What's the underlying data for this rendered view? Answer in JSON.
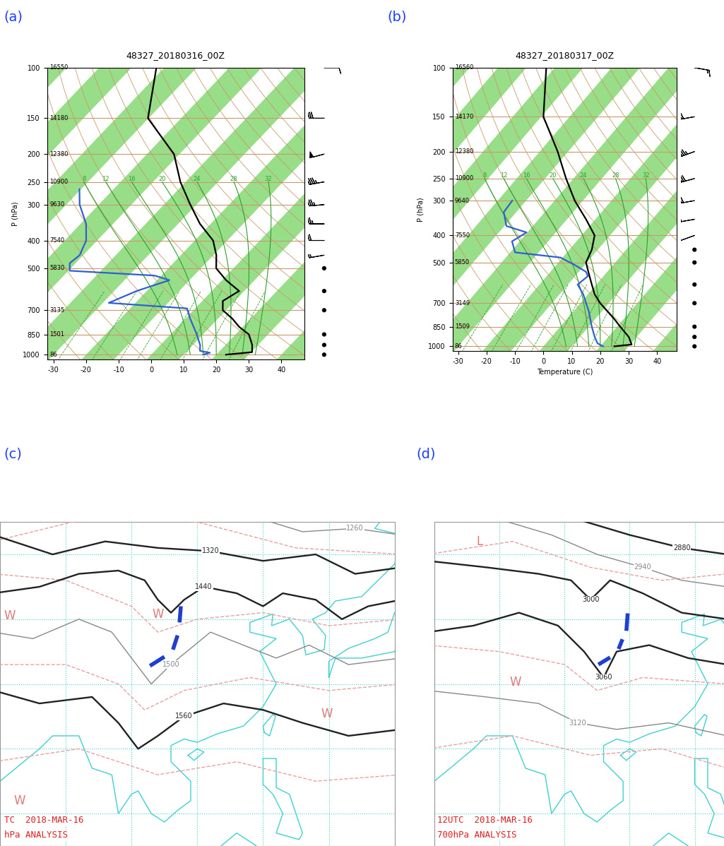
{
  "chart_data": [
    {
      "type": "skewt",
      "label": "(a)",
      "title": "48327_20180316_00Z",
      "ylabel": "P (hPa)",
      "log": "y",
      "grid": true,
      "xlim": [
        -32,
        47
      ],
      "xticks": [
        -30,
        -20,
        -10,
        0,
        10,
        20,
        30,
        40
      ],
      "ylim": [
        1040,
        100
      ],
      "yticks": [
        100,
        150,
        200,
        250,
        300,
        400,
        500,
        700,
        850,
        1000
      ],
      "heights": [
        16550,
        14180,
        12380,
        10900,
        9630,
        7540,
        5830,
        3135,
        1501,
        86
      ],
      "temperature": {
        "color": "#000000",
        "p": [
          1000,
          980,
          925,
          850,
          800,
          750,
          700,
          650,
          600,
          550,
          500,
          450,
          400,
          350,
          300,
          250,
          200,
          150,
          100
        ],
        "values": [
          23.0,
          30.3,
          28.2,
          24.1,
          18.9,
          14.5,
          9.0,
          6.3,
          8.4,
          1.2,
          -5.3,
          -9.1,
          -14.4,
          -23.3,
          -31.9,
          -41.6,
          -51.7,
          -70.2,
          -82.4
        ]
      },
      "dewpoint": {
        "color": "#3060d0",
        "p": [
          1000,
          985,
          970,
          925,
          850,
          750,
          690,
          660,
          600,
          550,
          530,
          510,
          480,
          450,
          400,
          350,
          300,
          265
        ],
        "values": [
          16.0,
          17.5,
          13.9,
          12.2,
          8.1,
          1.5,
          -2.5,
          -28.2,
          -23.1,
          -16.2,
          -22.2,
          -49.6,
          -51.8,
          -51.1,
          -53.4,
          -58.3,
          -65.9,
          -70.5
        ]
      },
      "moist_adiabat_labels": [
        8,
        12,
        16,
        20,
        24,
        28,
        32
      ],
      "wind": {
        "p": [
          1000,
          925,
          850,
          700,
          600,
          500,
          450,
          400,
          350,
          300,
          250,
          200,
          150,
          100
        ],
        "speed": [
          0,
          0,
          0,
          0,
          0,
          0,
          15,
          20,
          25,
          35,
          45,
          50,
          30,
          10
        ],
        "direction": [
          0,
          0,
          0,
          0,
          0,
          0,
          260,
          270,
          270,
          265,
          260,
          255,
          270,
          90
        ]
      }
    },
    {
      "type": "skewt",
      "label": "(b)",
      "title": "48327_20180317_00Z",
      "ylabel": "P (hPa)",
      "xlabel": "Temperature (C)",
      "log": "y",
      "grid": true,
      "xlim": [
        -32,
        47
      ],
      "xticks": [
        -30,
        -20,
        -10,
        0,
        10,
        20,
        30,
        40
      ],
      "ylim": [
        1040,
        100
      ],
      "yticks": [
        100,
        150,
        200,
        250,
        300,
        400,
        500,
        700,
        850,
        1000
      ],
      "heights": [
        16560,
        14170,
        12380,
        10900,
        9640,
        7550,
        5850,
        3149,
        1509,
        86
      ],
      "temperature": {
        "color": "#000000",
        "p": [
          1000,
          985,
          925,
          850,
          800,
          700,
          650,
          600,
          550,
          500,
          450,
          400,
          350,
          300,
          250,
          200,
          150,
          100
        ],
        "values": [
          25.0,
          30.5,
          27.2,
          21.1,
          16.9,
          7.0,
          2.3,
          -1.6,
          -5.8,
          -10.3,
          -12.1,
          -15.4,
          -23.3,
          -32.9,
          -42.6,
          -53.7,
          -69.2,
          -83.0
        ]
      },
      "dewpoint": {
        "color": "#3060d0",
        "p": [
          1000,
          975,
          925,
          850,
          750,
          700,
          650,
          600,
          560,
          540,
          510,
          480,
          460,
          420,
          390,
          370,
          330,
          300
        ],
        "values": [
          21.0,
          18.1,
          15.2,
          11.1,
          5.5,
          2.0,
          -1.7,
          -6.6,
          -5.5,
          -7.5,
          -13.6,
          -20.8,
          -38.3,
          -42.7,
          -40.3,
          -49.3,
          -54.4,
          -54.9
        ]
      },
      "moist_adiabat_labels": [
        8,
        12,
        16,
        20,
        24,
        28,
        32
      ],
      "wind": {
        "p": [
          1000,
          925,
          850,
          700,
          600,
          500,
          450,
          400,
          350,
          300,
          250,
          200,
          150,
          100
        ],
        "speed": [
          0,
          0,
          0,
          0,
          0,
          0,
          0,
          10,
          20,
          30,
          40,
          45,
          30,
          15
        ],
        "direction": [
          0,
          0,
          0,
          0,
          0,
          0,
          0,
          250,
          260,
          260,
          255,
          250,
          260,
          100
        ]
      }
    },
    {
      "type": "map",
      "label": "(c)",
      "text": [
        "TC  2018-MAR-16",
        "hPa ANALYSIS"
      ],
      "text_color": "#e02020",
      "tick_labels": false,
      "xlim": [
        80,
        140
      ],
      "ylim": [
        5,
        55
      ],
      "contours": [
        {
          "level": 1260,
          "color": "#888888",
          "points": [
            [
              118,
              56
            ],
            [
              126,
              53.5
            ],
            [
              134,
              54
            ],
            [
              141,
              53
            ]
          ]
        },
        {
          "level": 1320,
          "color": "#222222",
          "points": [
            [
              79,
              53
            ],
            [
              88,
              50
            ],
            [
              96,
              52
            ],
            [
              104,
              51
            ],
            [
              112,
              50.5
            ],
            [
              120,
              49
            ],
            [
              128,
              50
            ],
            [
              134,
              47
            ],
            [
              141,
              48
            ]
          ]
        },
        {
          "level": 1440,
          "color": "#222222",
          "points": [
            [
              79,
              44
            ],
            [
              86,
              45
            ],
            [
              92,
              47
            ],
            [
              98,
              47.5
            ],
            [
              102,
              46
            ],
            [
              104,
              43
            ],
            [
              106,
              41
            ],
            [
              108,
              43
            ],
            [
              111,
              45
            ],
            [
              116,
              44
            ],
            [
              120,
              42
            ],
            [
              123,
              44
            ],
            [
              128,
              43
            ],
            [
              132,
              40
            ],
            [
              136,
              42
            ],
            [
              141,
              43
            ]
          ]
        },
        {
          "level": 1500,
          "color": "#888888",
          "points": [
            [
              79,
              38
            ],
            [
              85,
              37
            ],
            [
              92,
              40
            ],
            [
              97,
              38
            ],
            [
              100,
              34
            ],
            [
              103,
              30
            ],
            [
              106,
              33
            ],
            [
              112,
              38
            ],
            [
              117,
              36
            ],
            [
              122,
              34
            ],
            [
              127,
              36
            ],
            [
              133,
              33
            ],
            [
              141,
              34
            ]
          ]
        },
        {
          "level": 1560,
          "color": "#222222",
          "points": [
            [
              79,
              29
            ],
            [
              86,
              27
            ],
            [
              94,
              28
            ],
            [
              98,
              24
            ],
            [
              101,
              20
            ],
            [
              104,
              22
            ],
            [
              108,
              25
            ],
            [
              114,
              27
            ],
            [
              120,
              26
            ],
            [
              126,
              24
            ],
            [
              133,
              22
            ],
            [
              141,
              23
            ]
          ]
        }
      ],
      "isotherms": {
        "color": "#e8a0a0",
        "lines": [
          [
            [
              79,
              52
            ],
            [
              95,
              56
            ],
            [
              110,
              55
            ],
            [
              125,
              51
            ],
            [
              141,
              50
            ]
          ],
          [
            [
              79,
              47
            ],
            [
              90,
              46
            ],
            [
              100,
              42
            ],
            [
              104,
              38
            ],
            [
              110,
              40
            ],
            [
              120,
              41
            ],
            [
              130,
              39
            ],
            [
              141,
              40
            ]
          ],
          [
            [
              79,
              33
            ],
            [
              90,
              33
            ],
            [
              98,
              30
            ],
            [
              102,
              26
            ],
            [
              108,
              29
            ],
            [
              118,
              31
            ],
            [
              130,
              29
            ],
            [
              141,
              30
            ]
          ],
          [
            [
              79,
              18
            ],
            [
              92,
              20
            ],
            [
              104,
              16
            ],
            [
              116,
              18
            ],
            [
              128,
              15
            ],
            [
              141,
              16
            ]
          ]
        ]
      },
      "trough": {
        "color": "#1f3fd0",
        "segments": [
          [
            [
              107.5,
              42
            ],
            [
              107.3,
              39.5
            ]
          ],
          [
            [
              107,
              37.5
            ],
            [
              106.3,
              35.3
            ]
          ],
          [
            [
              105,
              34.2
            ],
            [
              102.8,
              32.8
            ]
          ]
        ]
      },
      "markers": {
        "color": "#e07a7a",
        "items": [
          {
            "text": "W",
            "lon": 81.5,
            "lat": 40.5
          },
          {
            "text": "W",
            "lon": 104,
            "lat": 40.7
          },
          {
            "text": "W",
            "lon": 83,
            "lat": 12
          },
          {
            "text": "W",
            "lon": 129.7,
            "lat": 25.4
          }
        ]
      }
    },
    {
      "type": "map",
      "label": "(d)",
      "text": [
        "12UTC  2018-MAR-16",
        "700hPa ANALYSIS"
      ],
      "text_color": "#e02020",
      "tick_labels": false,
      "xlim": [
        80,
        124.5
      ],
      "ylim": [
        5,
        55
      ],
      "contours": [
        {
          "level": 2880,
          "color": "#222222",
          "points": [
            [
              100,
              56
            ],
            [
              110,
              53
            ],
            [
              118,
              51
            ],
            [
              125,
              50
            ]
          ]
        },
        {
          "level": 2940,
          "color": "#888888",
          "points": [
            [
              88,
              56
            ],
            [
              98,
              53
            ],
            [
              105,
              50
            ],
            [
              112,
              48
            ],
            [
              118,
              46
            ],
            [
              125,
              45
            ]
          ]
        },
        {
          "level": 3000,
          "color": "#222222",
          "points": [
            [
              79,
              49
            ],
            [
              88,
              48
            ],
            [
              96,
              47
            ],
            [
              101,
              46
            ],
            [
              104,
              43
            ],
            [
              107,
              46
            ],
            [
              112,
              44
            ],
            [
              118,
              41
            ],
            [
              125,
              40
            ]
          ]
        },
        {
          "level": 3060,
          "color": "#222222",
          "points": [
            [
              79,
              38
            ],
            [
              86,
              39
            ],
            [
              93,
              41
            ],
            [
              99,
              39
            ],
            [
              103,
              35
            ],
            [
              106,
              31
            ],
            [
              108,
              35
            ],
            [
              113,
              36
            ],
            [
              119,
              34
            ],
            [
              125,
              33
            ]
          ]
        },
        {
          "level": 3120,
          "color": "#888888",
          "points": [
            [
              79,
              29
            ],
            [
              88,
              28
            ],
            [
              96,
              27
            ],
            [
              102,
              24
            ],
            [
              108,
              23
            ],
            [
              116,
              24
            ],
            [
              125,
              22
            ]
          ]
        }
      ],
      "isotherms": {
        "color": "#e8a0a0",
        "lines": [
          [
            [
              79,
              50
            ],
            [
              92,
              52
            ],
            [
              104,
              48
            ],
            [
              115,
              46
            ],
            [
              125,
              47
            ]
          ],
          [
            [
              79,
              36
            ],
            [
              90,
              35
            ],
            [
              100,
              33
            ],
            [
              105,
              29
            ],
            [
              112,
              31
            ],
            [
              125,
              30
            ]
          ],
          [
            [
              79,
              20
            ],
            [
              92,
              22
            ],
            [
              104,
              19
            ],
            [
              115,
              20
            ],
            [
              125,
              17
            ]
          ]
        ]
      },
      "trough": {
        "color": "#1f3fd0",
        "segments": [
          [
            [
              109.7,
              40.9
            ],
            [
              109.5,
              38.2
            ]
          ],
          [
            [
              108.9,
              36.9
            ],
            [
              108.3,
              35.4
            ]
          ],
          [
            [
              107.0,
              34.1
            ],
            [
              105.2,
              33.0
            ]
          ]
        ]
      },
      "markers": {
        "color": "#e07a7a",
        "items": [
          {
            "text": "L",
            "lon": 87,
            "lat": 52
          },
          {
            "text": "W",
            "lon": 92.4,
            "lat": 30.3
          }
        ]
      }
    }
  ]
}
